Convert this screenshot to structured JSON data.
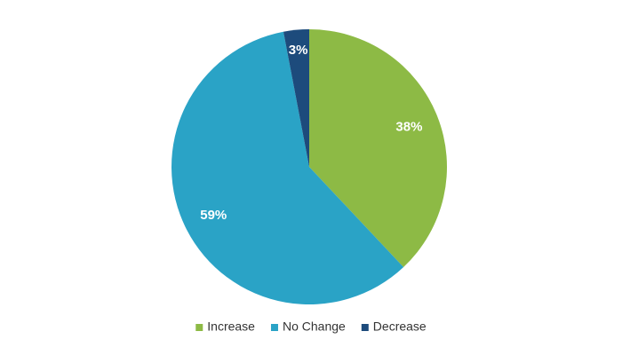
{
  "chart_data": {
    "type": "pie",
    "categories": [
      "Increase",
      "No Change",
      "Decrease"
    ],
    "values": [
      38,
      59,
      3
    ],
    "value_labels": [
      "38%",
      "59%",
      "3%"
    ],
    "colors": [
      "#8dba45",
      "#2aa3c6",
      "#1d4b7c"
    ],
    "legend": "bottom"
  }
}
